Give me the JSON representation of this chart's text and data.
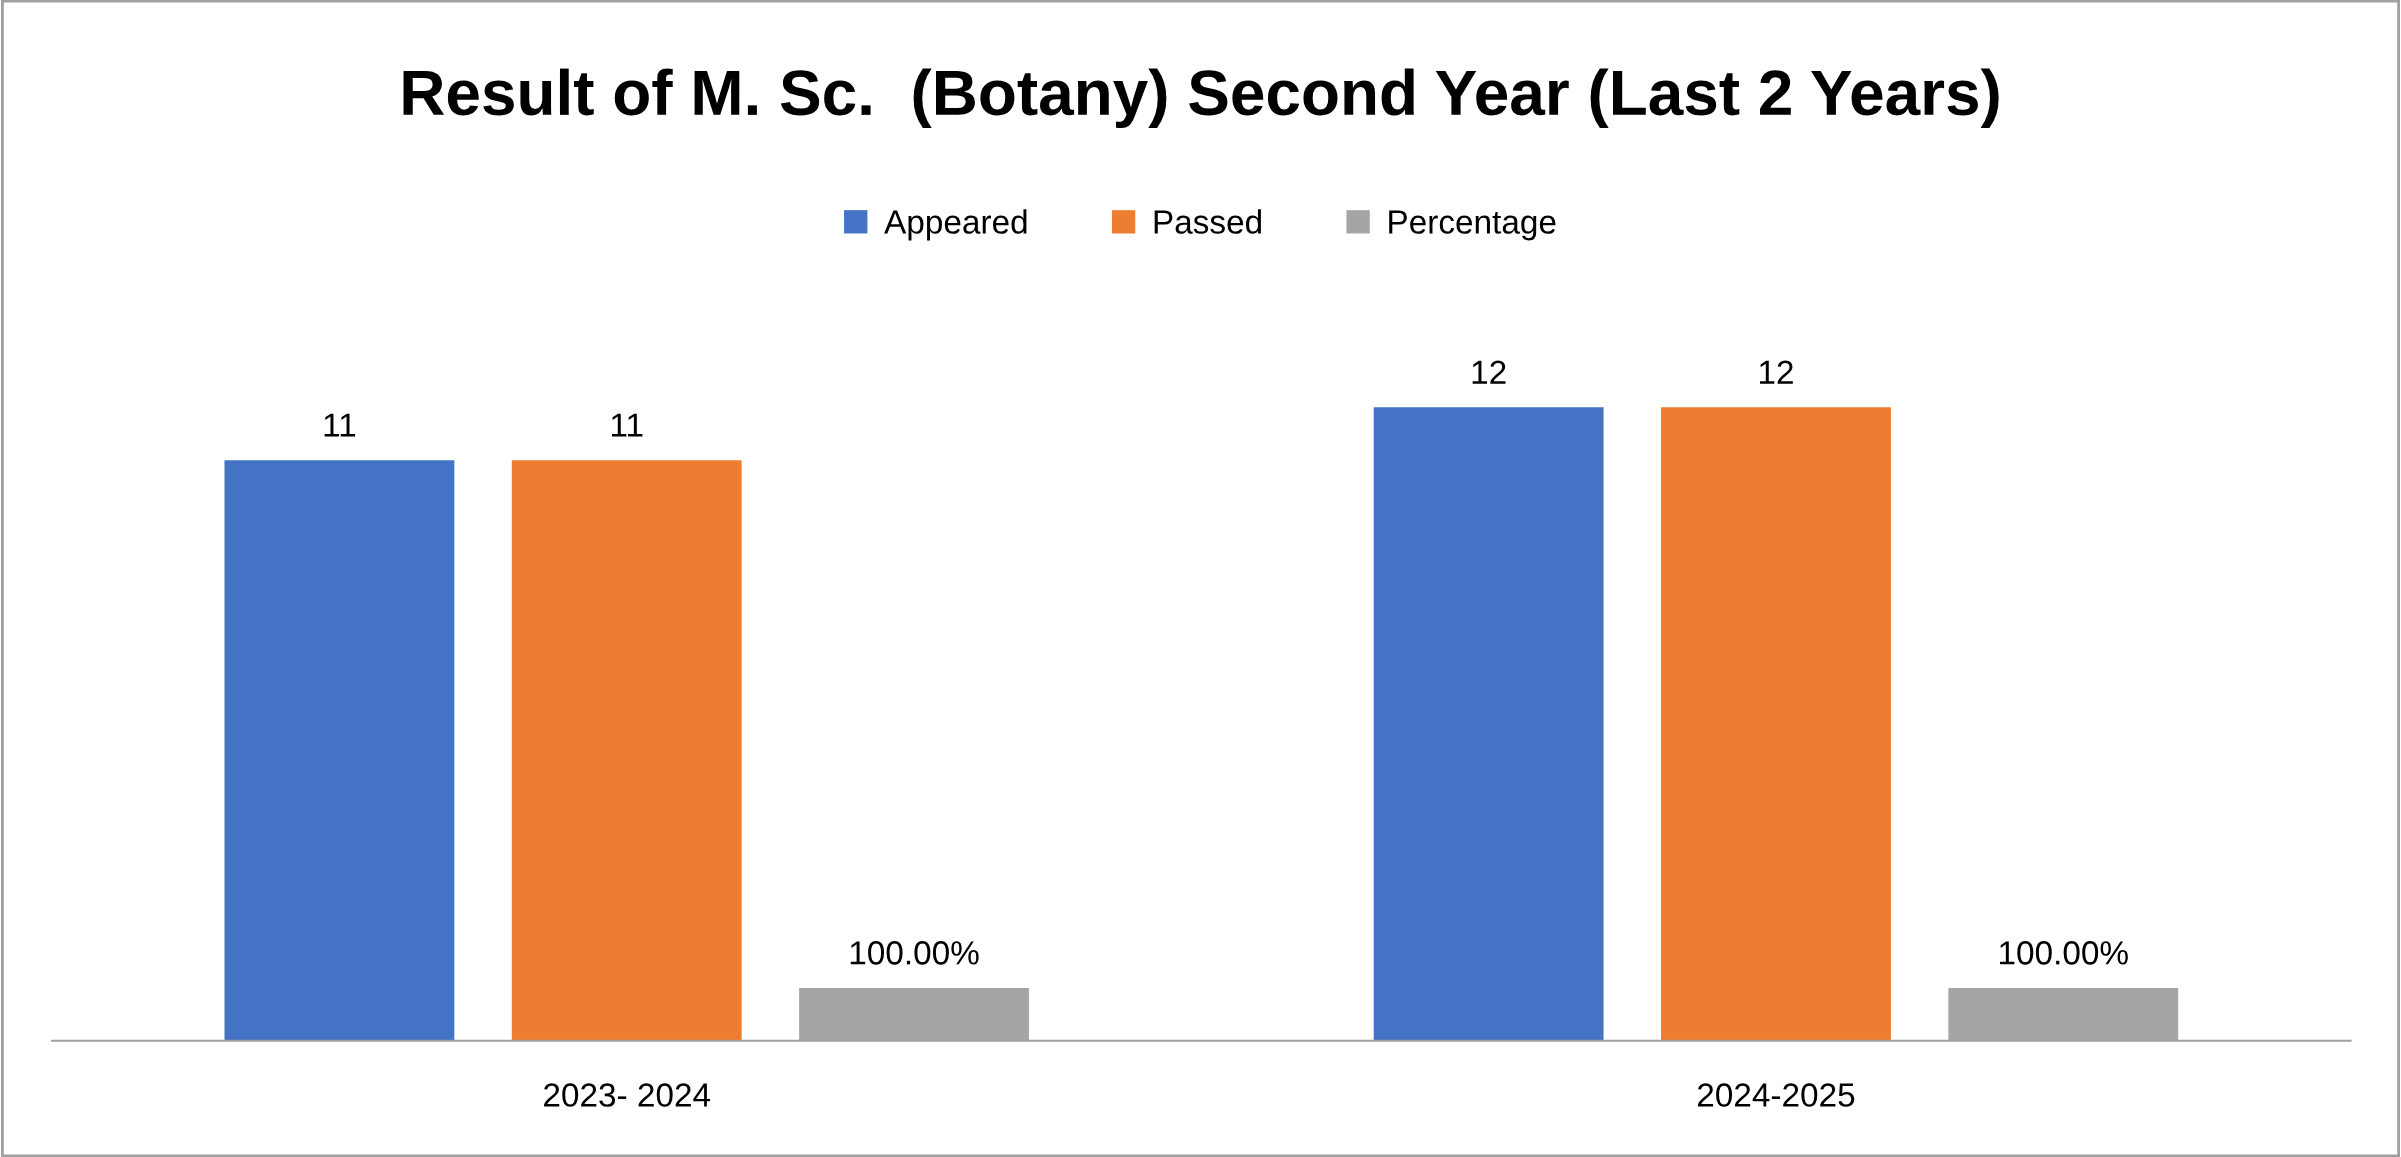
{
  "chart_data": {
    "type": "bar",
    "title": "Result of M. Sc.  (Botany) Second Year (Last 2 Years)",
    "categories": [
      "2023- 2024",
      "2024-2025"
    ],
    "series": [
      {
        "name": "Appeared",
        "color": "#4472c4",
        "values": [
          11,
          12
        ],
        "value_labels": [
          "11",
          "12"
        ]
      },
      {
        "name": "Passed",
        "color": "#ed7d31",
        "values": [
          11,
          12
        ],
        "value_labels": [
          "11",
          "12"
        ]
      },
      {
        "name": "Percentage",
        "color": "#a5a5a5",
        "values": [
          1,
          1
        ],
        "value_labels": [
          "100.00%",
          "100.00%"
        ]
      }
    ],
    "legend": "top"
  }
}
